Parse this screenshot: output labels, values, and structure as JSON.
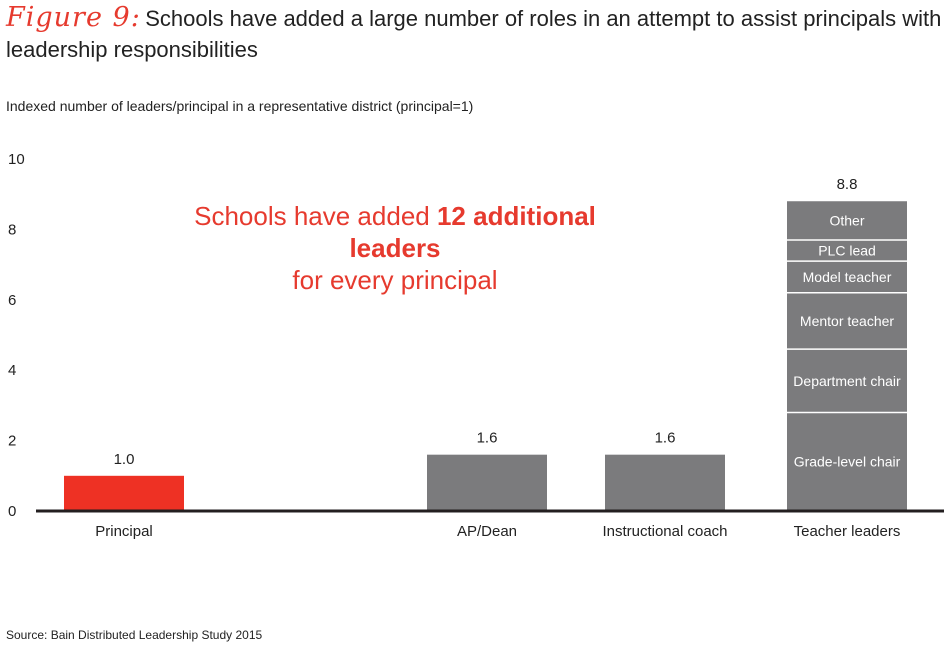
{
  "header": {
    "figure_label": "Figure 9:",
    "title": "Schools have added a large number of roles in an attempt to assist principals with leadership responsibilities"
  },
  "subtitle": "Indexed number of leaders/principal in a representative district (principal=1)",
  "callout": {
    "line1_prefix": "Schools have added ",
    "line1_emphasis": "12 additional leaders",
    "line2": "for every principal"
  },
  "source": "Source: Bain Distributed Leadership Study 2015",
  "colors": {
    "accent_red": "#ee3124",
    "bar_gray": "#7b7b7d",
    "axis": "#231f20"
  },
  "chart_data": {
    "type": "bar",
    "ylim": [
      0,
      10
    ],
    "yticks": [
      0,
      2,
      4,
      6,
      8,
      10
    ],
    "categories": [
      "Principal",
      "AP/Dean",
      "Instructional coach",
      "Teacher leaders"
    ],
    "bars": [
      {
        "category": "Principal",
        "value": 1.0,
        "label": "1.0",
        "color": "#ee3124"
      },
      {
        "category": "AP/Dean",
        "value": 1.6,
        "label": "1.6",
        "color": "#7b7b7d"
      },
      {
        "category": "Instructional coach",
        "value": 1.6,
        "label": "1.6",
        "color": "#7b7b7d"
      },
      {
        "category": "Teacher leaders",
        "value": 8.8,
        "label": "8.8",
        "color": "#7b7b7d",
        "segments": [
          {
            "name": "Grade-level chair",
            "value": 2.8
          },
          {
            "name": "Department chair",
            "value": 1.8
          },
          {
            "name": "Mentor teacher",
            "value": 1.6
          },
          {
            "name": "Model teacher",
            "value": 0.9
          },
          {
            "name": "PLC lead",
            "value": 0.6
          },
          {
            "name": "Other",
            "value": 1.1
          }
        ]
      }
    ],
    "grid": false
  }
}
